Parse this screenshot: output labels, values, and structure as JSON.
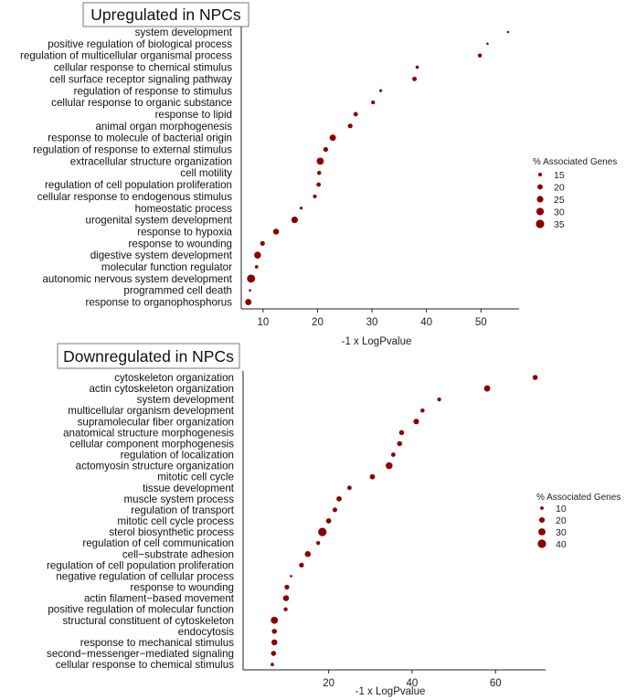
{
  "chart_data": [
    {
      "type": "scatter",
      "title": "Upregulated in NPCs",
      "xlabel": "-1 x LogPvalue",
      "ylabel": "",
      "xlim": [
        6,
        57
      ],
      "xticks": [
        10,
        20,
        30,
        40,
        50
      ],
      "size_legend": {
        "title": "% Associated Genes",
        "values": [
          15,
          20,
          25,
          30,
          35
        ]
      },
      "point_color": "#8b0000",
      "categories": [
        "system development",
        "positive regulation of biological process",
        "regulation of multicellular organismal process",
        "cellular response to chemical stimulus",
        "cell surface receptor signaling pathway",
        "regulation of response to stimulus",
        "cellular response to organic substance",
        "response to lipid",
        "animal organ morphogenesis",
        "response to molecule of bacterial origin",
        "regulation of response to external stimulus",
        "extracellular structure organization",
        "cell motility",
        "regulation of cell population proliferation",
        "cellular response to endogenous stimulus",
        "homeostatic process",
        "urogenital system development",
        "response to hypoxia",
        "response to wounding",
        "digestive system development",
        "molecular function regulator",
        "autonomic nervous system development",
        "programmed cell death",
        "response to organophosphorus"
      ],
      "x": [
        55,
        51.2,
        49.8,
        38.3,
        37.8,
        31.6,
        30.2,
        27,
        26,
        22.8,
        21.5,
        20.5,
        20.3,
        20.2,
        19.5,
        17,
        15.8,
        12.4,
        9.9,
        9,
        8.8,
        7.8,
        7.6,
        7.3
      ],
      "sizes": [
        12,
        11,
        16,
        14,
        17,
        13,
        15,
        17,
        18,
        24,
        18,
        28,
        16,
        17,
        15,
        13,
        25,
        22,
        18,
        27,
        14,
        33,
        12,
        24
      ]
    },
    {
      "type": "scatter",
      "title": "Downregulated in NPCs",
      "xlabel": "-1 x LogPvalue",
      "ylabel": "",
      "xlim": [
        -0.5,
        72
      ],
      "xticks": [
        20,
        40,
        60
      ],
      "size_legend": {
        "title": "% Associated Genes",
        "values": [
          10,
          20,
          30,
          40
        ]
      },
      "point_color": "#8b0000",
      "categories": [
        "cytoskeleton organization",
        "actin cytoskeleton organization",
        "system development",
        "multicellular organism development",
        "supramolecular fiber organization",
        "anatomical structure morphogenesis",
        "cellular component morphogenesis",
        "regulation of localization",
        "actomyosin structure organization",
        "mitotic cell cycle",
        "tissue development",
        "muscle system process",
        "regulation of transport",
        "mitotic cell cycle process",
        "sterol biosynthetic process",
        "regulation of cell communication",
        "cell−substrate adhesion",
        "regulation of cell population proliferation",
        "negative regulation of cellular process",
        "response to wounding",
        "actin filament−based movement",
        "positive regulation of molecular function",
        "structural constituent of cytoskeleton",
        "endocytosis",
        "response to mechanical stimulus",
        "second−messenger−mediated signaling",
        "cellular response to chemical stimulus"
      ],
      "x": [
        69.5,
        58,
        46.5,
        42.5,
        41,
        37.5,
        37,
        35.5,
        34.5,
        30.5,
        25,
        22.5,
        21.5,
        20,
        18.5,
        17.5,
        15,
        13.5,
        11,
        10,
        9.8,
        9.7,
        7,
        7,
        7,
        6.8,
        6.5
      ],
      "sizes": [
        17,
        24,
        12,
        13,
        20,
        17,
        17,
        14,
        28,
        18,
        14,
        18,
        15,
        18,
        40,
        12,
        22,
        16,
        7,
        16,
        22,
        12,
        30,
        17,
        22,
        17,
        10
      ]
    }
  ]
}
